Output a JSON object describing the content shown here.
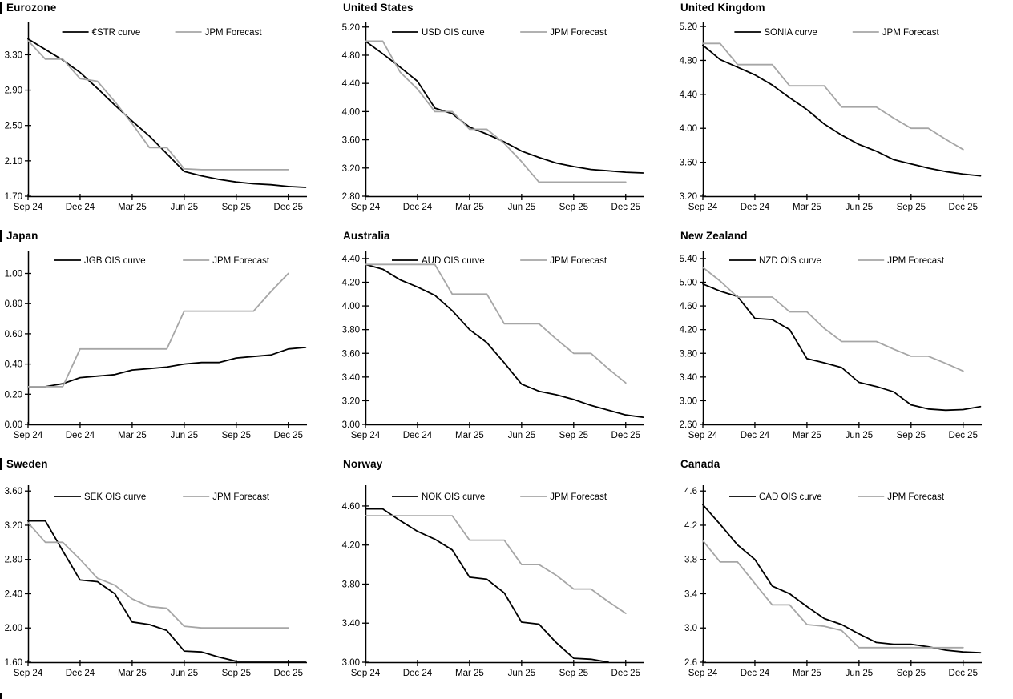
{
  "page": {
    "background": "#ffffff",
    "axis_color": "#000000",
    "text_color": "#000000",
    "forecast_color": "#a6a6a6",
    "main_color": "#000000"
  },
  "x_axis": {
    "tick_labels": [
      "Sep 24",
      "Dec 24",
      "Mar 25",
      "Jun 25",
      "Sep 25",
      "Dec 25"
    ],
    "tick_months": [
      0,
      3,
      6,
      9,
      12,
      15
    ]
  },
  "chart_data": [
    {
      "type": "line",
      "title": "Eurozone",
      "ylim": [
        1.7,
        3.63
      ],
      "yticks": [
        3.3,
        2.9,
        2.5,
        2.1,
        1.7
      ],
      "ytick_decimals": 2,
      "x_unit": "months from Sep 2024",
      "series": [
        {
          "name": "€STR curve",
          "color": "#000000",
          "values": [
            3.48,
            3.36,
            3.24,
            3.1,
            2.92,
            2.73,
            2.55,
            2.38,
            2.18,
            1.98,
            1.93,
            1.89,
            1.86,
            1.84,
            1.83,
            1.81,
            1.8
          ]
        },
        {
          "name": "JPM Forecast",
          "color": "#a6a6a6",
          "values": [
            3.46,
            3.25,
            3.25,
            3.03,
            3.0,
            2.77,
            2.52,
            2.25,
            2.25,
            2.01,
            2.0,
            2.0,
            2.0,
            2.0,
            2.0,
            2.0
          ]
        }
      ]
    },
    {
      "type": "line",
      "title": "United States",
      "ylim": [
        2.8,
        5.22
      ],
      "yticks": [
        5.2,
        4.8,
        4.4,
        4.0,
        3.6,
        3.2,
        2.8
      ],
      "ytick_decimals": 2,
      "x_unit": "months from Sep 2024",
      "series": [
        {
          "name": "USD OIS curve",
          "color": "#000000",
          "values": [
            5.0,
            4.82,
            4.63,
            4.43,
            4.05,
            3.97,
            3.78,
            3.68,
            3.57,
            3.44,
            3.35,
            3.27,
            3.22,
            3.18,
            3.16,
            3.14,
            3.13
          ]
        },
        {
          "name": "JPM Forecast",
          "color": "#a6a6a6",
          "values": [
            5.0,
            5.0,
            4.56,
            4.32,
            4.0,
            4.0,
            3.75,
            3.75,
            3.55,
            3.29,
            3.0,
            3.0,
            3.0,
            3.0,
            3.0,
            3.0
          ]
        }
      ]
    },
    {
      "type": "line",
      "title": "United Kingdom",
      "ylim": [
        3.2,
        5.21
      ],
      "yticks": [
        5.2,
        4.8,
        4.4,
        4.0,
        3.6,
        3.2
      ],
      "ytick_decimals": 2,
      "x_unit": "months from Sep 2024",
      "series": [
        {
          "name": "SONIA curve",
          "color": "#000000",
          "values": [
            4.98,
            4.81,
            4.72,
            4.63,
            4.51,
            4.36,
            4.22,
            4.05,
            3.92,
            3.81,
            3.73,
            3.63,
            3.58,
            3.53,
            3.49,
            3.46,
            3.44
          ]
        },
        {
          "name": "JPM Forecast",
          "color": "#a6a6a6",
          "values": [
            5.0,
            5.0,
            4.75,
            4.75,
            4.75,
            4.5,
            4.5,
            4.5,
            4.25,
            4.25,
            4.25,
            4.12,
            4.0,
            4.0,
            3.87,
            3.75
          ]
        }
      ]
    },
    {
      "type": "line",
      "title": "Japan",
      "ylim": [
        0.0,
        1.13
      ],
      "yticks": [
        1.0,
        0.8,
        0.6,
        0.4,
        0.2,
        0.0
      ],
      "ytick_decimals": 2,
      "x_unit": "months from Sep 2024",
      "series": [
        {
          "name": "JGB OIS curve",
          "color": "#000000",
          "values": [
            0.25,
            0.25,
            0.27,
            0.31,
            0.32,
            0.33,
            0.36,
            0.37,
            0.38,
            0.4,
            0.41,
            0.41,
            0.44,
            0.45,
            0.46,
            0.5,
            0.51
          ]
        },
        {
          "name": "JPM Forecast",
          "color": "#a6a6a6",
          "values": [
            0.25,
            0.25,
            0.25,
            0.5,
            0.5,
            0.5,
            0.5,
            0.5,
            0.5,
            0.75,
            0.75,
            0.75,
            0.75,
            0.75,
            0.88,
            1.0
          ]
        }
      ]
    },
    {
      "type": "line",
      "title": "Australia",
      "ylim": [
        3.0,
        4.44
      ],
      "yticks": [
        4.4,
        4.2,
        4.0,
        3.8,
        3.6,
        3.4,
        3.2,
        3.0
      ],
      "ytick_decimals": 2,
      "x_unit": "months from Sep 2024",
      "series": [
        {
          "name": "AUD OIS curve",
          "color": "#000000",
          "values": [
            4.35,
            4.31,
            4.22,
            4.16,
            4.09,
            3.96,
            3.8,
            3.69,
            3.52,
            3.34,
            3.28,
            3.25,
            3.21,
            3.16,
            3.12,
            3.08,
            3.06
          ]
        },
        {
          "name": "JPM Forecast",
          "color": "#a6a6a6",
          "values": [
            4.35,
            4.35,
            4.35,
            4.35,
            4.35,
            4.1,
            4.1,
            4.1,
            3.85,
            3.85,
            3.85,
            3.72,
            3.6,
            3.6,
            3.47,
            3.35
          ]
        }
      ]
    },
    {
      "type": "line",
      "title": "New Zealand",
      "ylim": [
        2.6,
        5.48
      ],
      "yticks": [
        5.4,
        5.0,
        4.6,
        4.2,
        3.8,
        3.4,
        3.0,
        2.6
      ],
      "ytick_decimals": 2,
      "x_unit": "months from Sep 2024",
      "series": [
        {
          "name": "NZD OIS curve",
          "color": "#000000",
          "values": [
            4.97,
            4.85,
            4.76,
            4.39,
            4.37,
            4.2,
            3.71,
            3.64,
            3.56,
            3.31,
            3.24,
            3.15,
            2.93,
            2.86,
            2.84,
            2.85,
            2.9
          ]
        },
        {
          "name": "JPM Forecast",
          "color": "#a6a6a6",
          "values": [
            5.25,
            5.02,
            4.75,
            4.75,
            4.75,
            4.5,
            4.5,
            4.22,
            4.0,
            4.0,
            4.0,
            3.87,
            3.75,
            3.75,
            3.63,
            3.5
          ]
        }
      ]
    },
    {
      "type": "line",
      "title": "Sweden",
      "ylim": [
        1.6,
        3.63
      ],
      "yticks": [
        3.6,
        3.2,
        2.8,
        2.4,
        2.0,
        1.6
      ],
      "ytick_decimals": 2,
      "x_unit": "months from Sep 2024",
      "series": [
        {
          "name": "SEK OIS curve",
          "color": "#000000",
          "values": [
            3.25,
            3.25,
            2.9,
            2.56,
            2.54,
            2.4,
            2.07,
            2.04,
            1.97,
            1.73,
            1.72,
            1.66,
            1.61,
            1.61,
            1.61,
            1.61,
            1.61
          ]
        },
        {
          "name": "JPM Forecast",
          "color": "#a6a6a6",
          "values": [
            3.23,
            3.0,
            3.0,
            2.8,
            2.58,
            2.5,
            2.34,
            2.25,
            2.23,
            2.02,
            2.0,
            2.0,
            2.0,
            2.0,
            2.0,
            2.0
          ]
        }
      ]
    },
    {
      "type": "line",
      "title": "Norway",
      "ylim": [
        3.0,
        4.78
      ],
      "yticks": [
        4.6,
        4.2,
        3.8,
        3.4,
        3.0
      ],
      "ytick_decimals": 2,
      "x_unit": "months from Sep 2024",
      "series": [
        {
          "name": "NOK OIS curve",
          "color": "#000000",
          "values": [
            4.57,
            4.57,
            4.45,
            4.34,
            4.26,
            4.15,
            3.87,
            3.85,
            3.71,
            3.41,
            3.39,
            3.2,
            3.04,
            3.03,
            3.0
          ]
        },
        {
          "name": "JPM Forecast",
          "color": "#a6a6a6",
          "values": [
            4.5,
            4.5,
            4.5,
            4.5,
            4.5,
            4.5,
            4.25,
            4.25,
            4.25,
            4.0,
            4.0,
            3.89,
            3.75,
            3.75,
            3.62,
            3.5
          ]
        }
      ]
    },
    {
      "type": "line",
      "title": "Canada",
      "ylim": [
        2.6,
        4.63
      ],
      "yticks": [
        4.6,
        4.2,
        3.8,
        3.4,
        3.0,
        2.6
      ],
      "ytick_decimals": 1,
      "x_unit": "months from Sep 2024",
      "series": [
        {
          "name": "CAD OIS curve",
          "color": "#000000",
          "values": [
            4.44,
            4.21,
            3.97,
            3.8,
            3.49,
            3.4,
            3.25,
            3.11,
            3.04,
            2.93,
            2.83,
            2.81,
            2.81,
            2.78,
            2.74,
            2.72,
            2.71
          ]
        },
        {
          "name": "JPM Forecast",
          "color": "#a6a6a6",
          "values": [
            4.02,
            3.77,
            3.77,
            3.52,
            3.27,
            3.27,
            3.04,
            3.02,
            2.97,
            2.77,
            2.77,
            2.77,
            2.77,
            2.77,
            2.77,
            2.77
          ]
        }
      ]
    }
  ]
}
